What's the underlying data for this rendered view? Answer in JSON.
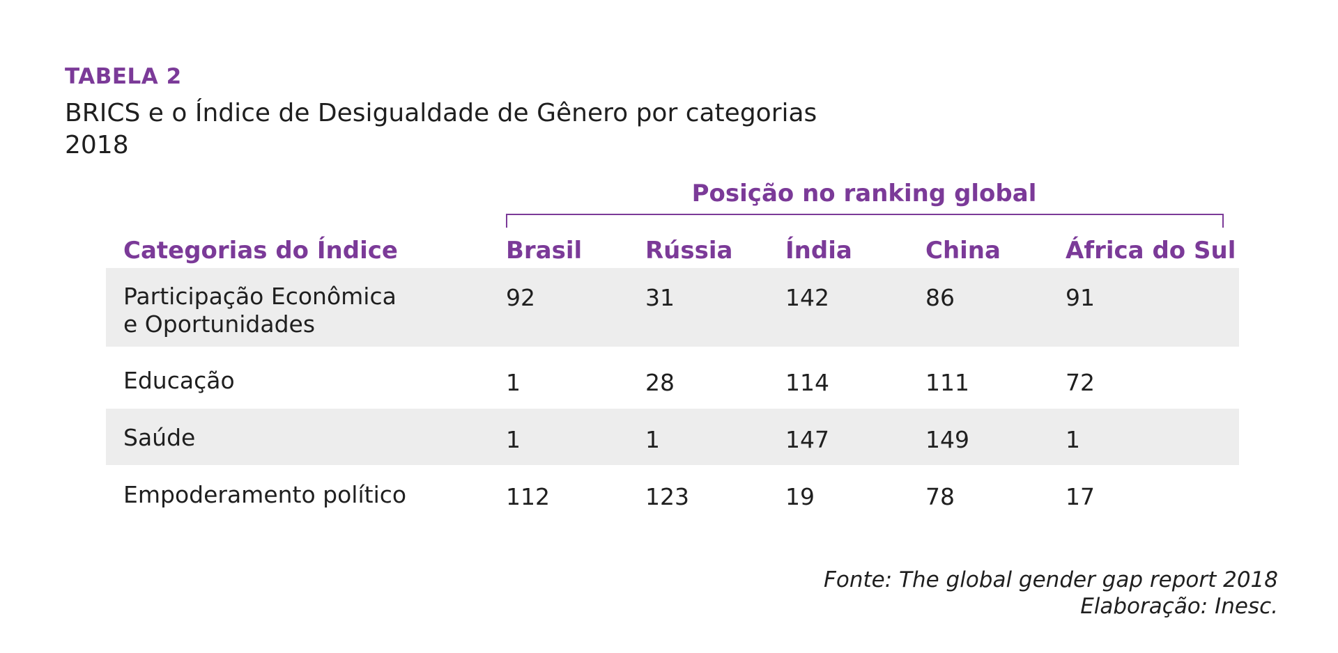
{
  "table_label": "TABELA 2",
  "title_line1": "BRICS e o Índice de Desigualdade de Gênero por categorias",
  "title_line2": "2018",
  "group_header": "Posição no ranking global",
  "columns": {
    "category": "Categorias do Índice",
    "brasil": "Brasil",
    "russia": "Rússia",
    "india": "Índia",
    "china": "China",
    "africa_do_sul": "África do Sul"
  },
  "rows": [
    {
      "category_line1": "Participação Econômica",
      "category_line2": "e Oportunidades",
      "brasil": "92",
      "russia": "31",
      "india": "142",
      "china": "86",
      "africa_do_sul": "91"
    },
    {
      "category_line1": "Educação",
      "brasil": "1",
      "russia": "28",
      "india": "114",
      "china": "111",
      "africa_do_sul": "72"
    },
    {
      "category_line1": "Saúde",
      "brasil": "1",
      "russia": "1",
      "india": "147",
      "china": "149",
      "africa_do_sul": "1"
    },
    {
      "category_line1": "Empoderamento político",
      "brasil": "112",
      "russia": "123",
      "india": "19",
      "china": "78",
      "africa_do_sul": "17"
    }
  ],
  "source_line1": "Fonte: The global gender gap report 2018",
  "source_line2": "Elaboração: Inesc.",
  "colors": {
    "accent": "#7b3a98",
    "row_shade": "#ededed",
    "text": "#1f1f1f"
  }
}
